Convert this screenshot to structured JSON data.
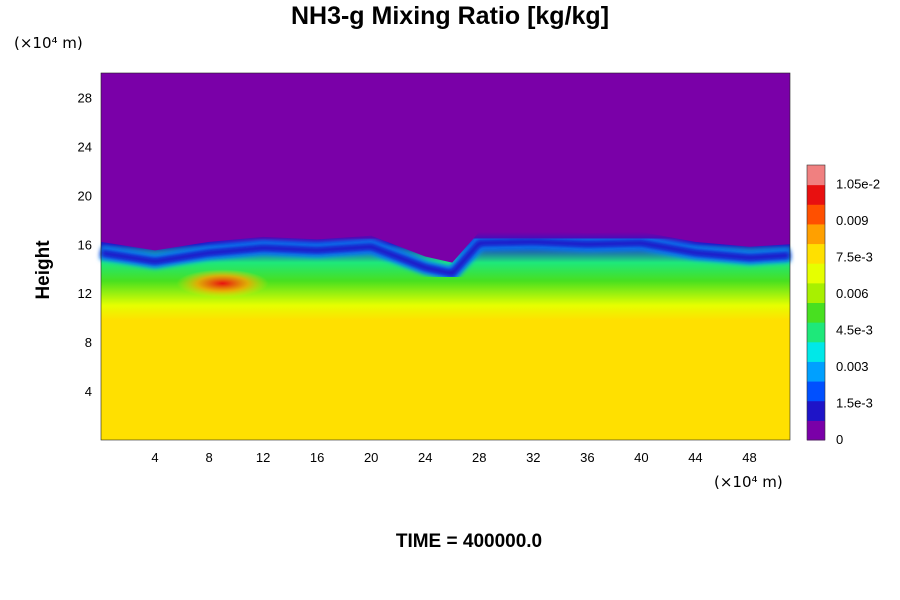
{
  "chart_data": {
    "type": "heatmap",
    "title": "NH3-g Mixing Ratio [kg/kg]",
    "ylabel": "Height",
    "xlabel": "",
    "x_unit_label": "(×10⁴ m)",
    "y_unit_label": "(×10⁴ m)",
    "footer": "TIME = 400000.0",
    "xlim": [
      0,
      51
    ],
    "ylim": [
      0,
      30
    ],
    "x_ticks": [
      "4",
      "8",
      "12",
      "16",
      "20",
      "24",
      "28",
      "32",
      "36",
      "40",
      "44",
      "48"
    ],
    "y_ticks": [
      "4",
      "8",
      "12",
      "16",
      "20",
      "24",
      "28"
    ],
    "colorbar": {
      "range": [
        0,
        0.0113
      ],
      "tick_labels": [
        "0",
        "1.5e-3",
        "0.003",
        "4.5e-3",
        "0.006",
        "7.5e-3",
        "0.009",
        "1.05e-2"
      ],
      "tick_values": [
        0,
        0.0015,
        0.003,
        0.0045,
        0.006,
        0.0075,
        0.009,
        0.0105
      ],
      "colors": [
        "#7a00a8",
        "#1e14c8",
        "#0050ff",
        "#00a0ff",
        "#00e8e8",
        "#1ee87a",
        "#48e020",
        "#a8f000",
        "#e6ff00",
        "#ffe000",
        "#ffa000",
        "#ff5000",
        "#e81010",
        "#f08080"
      ]
    },
    "vertical_profile": {
      "height": [
        0,
        9.8,
        11,
        13,
        14.5,
        16,
        17,
        30
      ],
      "value": [
        0.0078,
        0.0078,
        0.0068,
        0.0055,
        0.0042,
        0.0015,
        0.0,
        0.0
      ]
    },
    "cloud_top_profile": {
      "x": [
        0,
        4,
        8,
        12,
        16,
        20,
        24,
        26,
        28,
        32,
        36,
        40,
        44,
        48,
        51
      ],
      "height": [
        16.2,
        15.5,
        16.2,
        16.6,
        16.4,
        16.7,
        15.0,
        14.5,
        17.0,
        17.1,
        16.9,
        17.0,
        16.2,
        15.8,
        16.0
      ]
    },
    "peak_region": {
      "x": 9,
      "height": 12.8,
      "value": 0.0098
    }
  }
}
